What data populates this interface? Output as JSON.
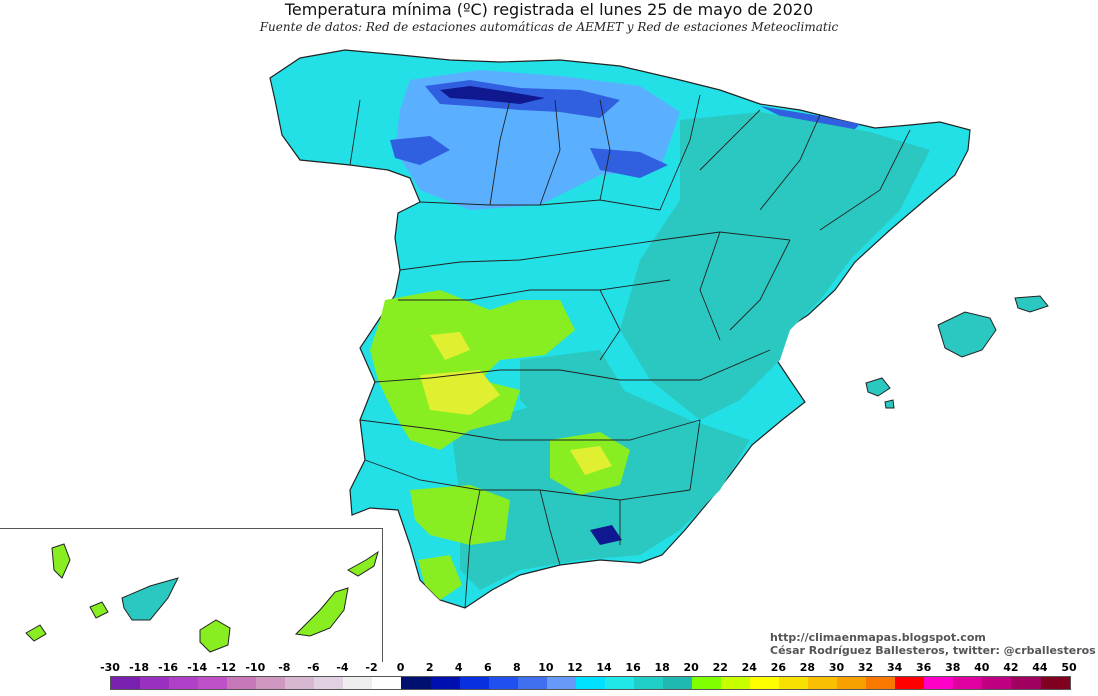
{
  "header": {
    "title": "Temperatura mínima (ºC) registrada el lunes 25 de mayo de 2020",
    "subtitle": "Fuente de datos: Red de estaciones automáticas de AEMET y Red de estaciones Meteoclimatic"
  },
  "credits": {
    "website": "http://climaenmapas.blogspot.com",
    "author": "César Rodríguez Ballesteros, twitter: @crballesteros"
  },
  "map": {
    "colors": {
      "cyan": "#22e0e6",
      "teal": "#2ac8c0",
      "light_blue": "#5ab0ff",
      "blue": "#3060e0",
      "dark_blue": "#101890",
      "lime": "#88ee22",
      "yellow": "#e0f030",
      "border": "#222222"
    }
  },
  "legend": {
    "labels": [
      "-30",
      "-18",
      "-16",
      "-14",
      "-12",
      "-10",
      "-8",
      "-6",
      "-4",
      "-2",
      "0",
      "2",
      "4",
      "6",
      "8",
      "10",
      "12",
      "14",
      "16",
      "18",
      "20",
      "22",
      "24",
      "26",
      "28",
      "30",
      "32",
      "34",
      "36",
      "38",
      "40",
      "42",
      "44",
      "50"
    ],
    "colors": [
      "#7a20b0",
      "#9a30c0",
      "#b040c8",
      "#c050c8",
      "#c878b8",
      "#d098c0",
      "#d8b8d0",
      "#e0d0e0",
      "#eeeeee",
      "#ffffff",
      "#001070",
      "#0010b0",
      "#0830e0",
      "#2050f0",
      "#4070f0",
      "#6898f8",
      "#00e0ff",
      "#20e8e8",
      "#20d0c8",
      "#20b8b0",
      "#80ff00",
      "#c8ff00",
      "#ffff00",
      "#f8e000",
      "#f8c000",
      "#f8a000",
      "#f87800",
      "#ff0000",
      "#ff00c8",
      "#e000a0",
      "#c00080",
      "#a00060",
      "#800020"
    ]
  }
}
